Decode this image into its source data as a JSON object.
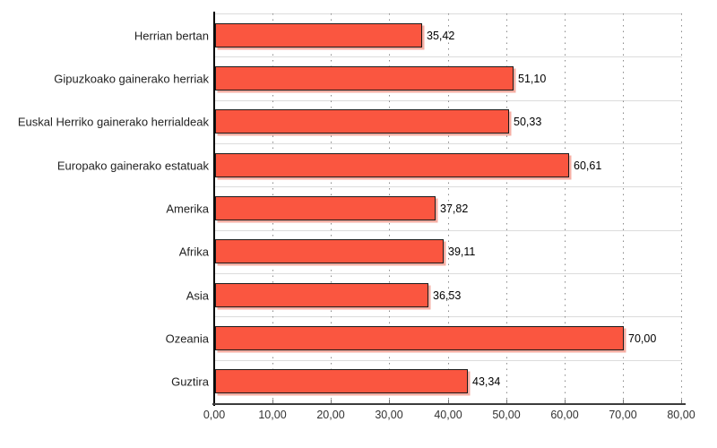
{
  "chart_data": {
    "type": "bar",
    "orientation": "horizontal",
    "title": "",
    "xlabel": "",
    "ylabel": "",
    "categories": [
      "Herrian bertan",
      "Gipuzkoako gainerako herriak",
      "Euskal Herriko gainerako herrialdeak",
      "Europako gainerako estatuak",
      "Amerika",
      "Afrika",
      "Asia",
      "Ozeania",
      "Guztira"
    ],
    "values": [
      35.42,
      51.1,
      50.33,
      60.61,
      37.82,
      39.11,
      36.53,
      70.0,
      43.34
    ],
    "value_labels": [
      "35,42",
      "51,10",
      "50,33",
      "60,61",
      "37,82",
      "39,11",
      "36,53",
      "70,00",
      "43,34"
    ],
    "x_ticks": [
      "0,00",
      "10,00",
      "20,00",
      "30,00",
      "40,00",
      "50,00",
      "60,00",
      "70,00",
      "80,00"
    ],
    "x_tick_values": [
      0,
      10,
      20,
      30,
      40,
      50,
      60,
      70,
      80
    ],
    "xlim": [
      0,
      80
    ],
    "grid": "vertical-dotted-with-horizontal-band-lines",
    "legend": "none",
    "colors": {
      "bar_fill": "#FA5640",
      "bar_border": "#1A1A1A",
      "bar_shadow": "#F6AFA4",
      "band_line": "#DCDCDC",
      "vgrid_dot": "#8A8A8A",
      "y_axis": "#000000",
      "x_axis": "#3C3C3C",
      "tick_mark": "#777777"
    }
  }
}
